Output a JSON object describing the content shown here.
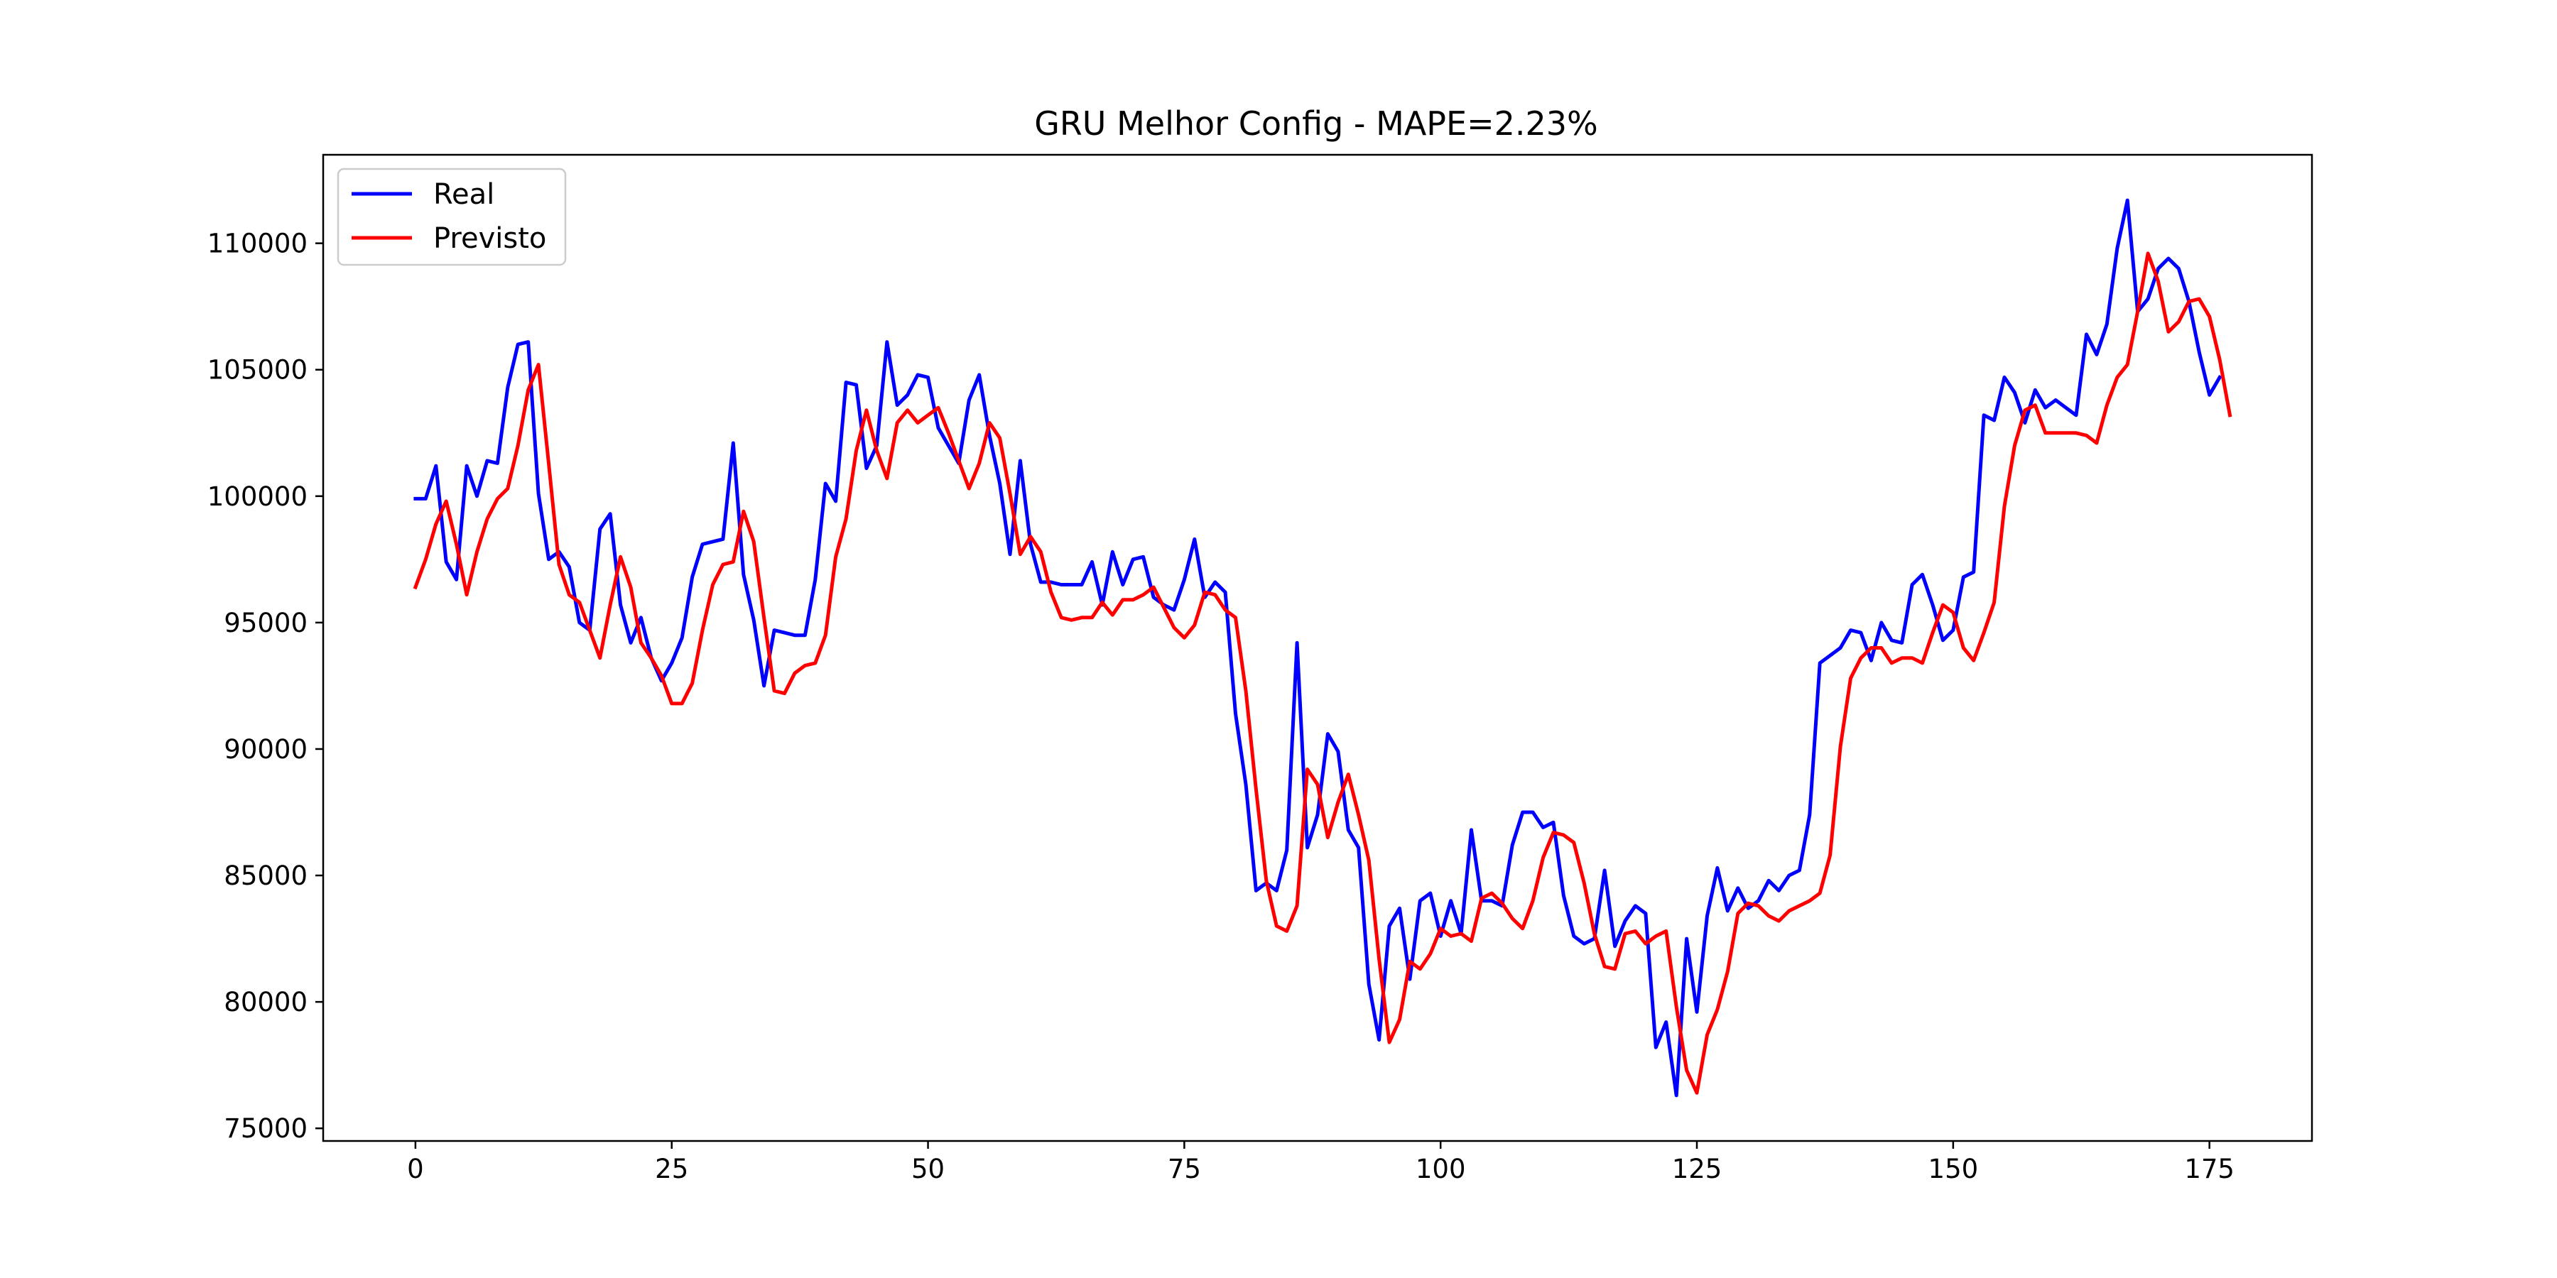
{
  "chart_data": {
    "type": "line",
    "title": "GRU Melhor Config - MAPE=2.23%",
    "xlabel": "",
    "ylabel": "",
    "xlim": [
      -9,
      185
    ],
    "ylim": [
      74500,
      113500
    ],
    "xticks": [
      0,
      25,
      50,
      75,
      100,
      125,
      150,
      175
    ],
    "yticks": [
      75000,
      80000,
      85000,
      90000,
      95000,
      100000,
      105000,
      110000
    ],
    "xtick_labels": [
      "0",
      "25",
      "50",
      "75",
      "100",
      "125",
      "150",
      "175"
    ],
    "ytick_labels": [
      "75000",
      "80000",
      "85000",
      "90000",
      "95000",
      "100000",
      "105000",
      "110000"
    ],
    "grid": false,
    "legend_position": "upper-left",
    "series": [
      {
        "name": "Real",
        "color": "#0000ff",
        "values": [
          99900,
          99900,
          101200,
          97400,
          96700,
          101200,
          100000,
          101400,
          101300,
          104300,
          106000,
          106100,
          100100,
          97500,
          97800,
          97200,
          95000,
          94700,
          98700,
          99300,
          95700,
          94200,
          95200,
          93600,
          92700,
          93400,
          94400,
          96800,
          98100,
          98200,
          98300,
          102100,
          96900,
          95100,
          92500,
          94700,
          94600,
          94500,
          94500,
          96700,
          100500,
          99800,
          104500,
          104400,
          101100,
          102000,
          106100,
          103600,
          104000,
          104800,
          104700,
          102700,
          102000,
          101300,
          103800,
          104800,
          102400,
          100500,
          97700,
          101400,
          98100,
          96600,
          96600,
          96500,
          96500,
          96500,
          97400,
          95700,
          97800,
          96500,
          97500,
          97600,
          96000,
          95700,
          95500,
          96700,
          98300,
          96000,
          96600,
          96200,
          91400,
          88600,
          84400,
          84700,
          84400,
          86000,
          94200,
          86100,
          87400,
          90600,
          89900,
          86800,
          86100,
          80700,
          78500,
          83000,
          83700,
          80900,
          84000,
          84300,
          82600,
          84000,
          82700,
          86800,
          84000,
          84000,
          83800,
          86200,
          87500,
          87500,
          86900,
          87100,
          84200,
          82600,
          82300,
          82500,
          85200,
          82200,
          83200,
          83800,
          83500,
          78200,
          79200,
          76300,
          82500,
          79600,
          83400,
          85300,
          83600,
          84500,
          83700,
          84000,
          84800,
          84400,
          85000,
          85200,
          87400,
          93400,
          93700,
          94000,
          94700,
          94600,
          93500,
          95000,
          94300,
          94200,
          96500,
          96900,
          95700,
          94300,
          94700,
          96800,
          97000,
          103200,
          103000,
          104700,
          104100,
          102900,
          104200,
          103500,
          103800,
          103500,
          103200,
          106400,
          105600,
          106800,
          109800,
          111700,
          107300,
          107800,
          109000,
          109400,
          109000,
          107700,
          105700,
          104000,
          104700
        ]
      },
      {
        "name": "Previsto",
        "color": "#ff0000",
        "values": [
          96400,
          97500,
          98900,
          99800,
          98100,
          96100,
          97800,
          99100,
          99900,
          100300,
          102000,
          104200,
          105200,
          101300,
          97300,
          96100,
          95800,
          94700,
          93600,
          95700,
          97600,
          96400,
          94200,
          93600,
          92900,
          91800,
          91800,
          92600,
          94700,
          96500,
          97300,
          97400,
          99400,
          98200,
          95200,
          92300,
          92200,
          93000,
          93300,
          93400,
          94500,
          97600,
          99100,
          101800,
          103400,
          101800,
          100700,
          102900,
          103400,
          102900,
          103200,
          103500,
          102500,
          101400,
          100300,
          101300,
          102900,
          102300,
          100100,
          97700,
          98400,
          97800,
          96200,
          95200,
          95100,
          95200,
          95200,
          95800,
          95300,
          95900,
          95900,
          96100,
          96400,
          95600,
          94800,
          94400,
          94900,
          96200,
          96100,
          95500,
          95200,
          92300,
          88400,
          84800,
          83000,
          82800,
          83800,
          89200,
          88600,
          86500,
          87900,
          89000,
          87400,
          85600,
          81700,
          78400,
          79300,
          81600,
          81300,
          81900,
          82900,
          82600,
          82700,
          82400,
          84100,
          84300,
          83900,
          83300,
          82900,
          84000,
          85700,
          86700,
          86600,
          86300,
          84700,
          82700,
          81400,
          81300,
          82700,
          82800,
          82300,
          82600,
          82800,
          79800,
          77300,
          76400,
          78700,
          79700,
          81200,
          83500,
          83900,
          83800,
          83400,
          83200,
          83600,
          83800,
          84000,
          84300,
          85800,
          90100,
          92800,
          93600,
          94000,
          94000,
          93400,
          93600,
          93600,
          93400,
          94600,
          95700,
          95400,
          94000,
          93500,
          94600,
          95800,
          99600,
          102000,
          103400,
          103600,
          102500,
          102500,
          102500,
          102500,
          102400,
          102100,
          103600,
          104700,
          105200,
          107300,
          109600,
          108500,
          106500,
          106900,
          107700,
          107800,
          107100,
          105400,
          103200
        ]
      }
    ]
  }
}
